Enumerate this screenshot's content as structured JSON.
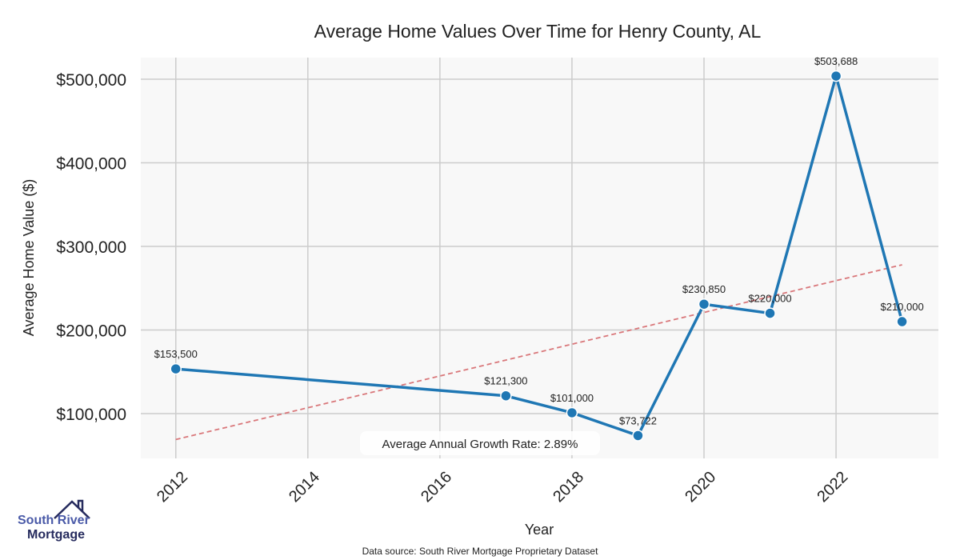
{
  "chart_data": {
    "type": "line",
    "title": "Average Home Values Over Time for Henry County, AL",
    "xlabel": "Year",
    "ylabel": "Average Home Value ($)",
    "x": [
      2012,
      2017,
      2018,
      2019,
      2020,
      2021,
      2022,
      2023
    ],
    "values": [
      153500,
      121300,
      101000,
      73722,
      230850,
      220000,
      503688,
      210000
    ],
    "data_labels": [
      "$153,500",
      "$121,300",
      "$101,000",
      "$73,722",
      "$230,850",
      "$220,000",
      "$503,688",
      "$210,000"
    ],
    "trend": {
      "x": [
        2012,
        2023
      ],
      "y": [
        69000,
        278000
      ]
    },
    "xlim": [
      2011.47,
      2023.55
    ],
    "ylim": [
      46400,
      525800
    ],
    "xticks": [
      2012,
      2014,
      2016,
      2018,
      2020,
      2022
    ],
    "yticks": [
      100000,
      200000,
      300000,
      400000,
      500000
    ],
    "ytick_labels": [
      "$100,000",
      "$200,000",
      "$300,000",
      "$400,000",
      "$500,000"
    ],
    "annotation": "Average Annual Growth Rate: 2.89%",
    "grid": true,
    "colors": {
      "line": "#1f77b4",
      "trend": "#d9777a",
      "plot_bg": "#f8f8f8",
      "grid": "#cccccc"
    }
  },
  "footer": {
    "source": "Data source: South River Mortgage Proprietary Dataset"
  },
  "logo": {
    "line1": "South River",
    "line2": "Mortgage"
  }
}
